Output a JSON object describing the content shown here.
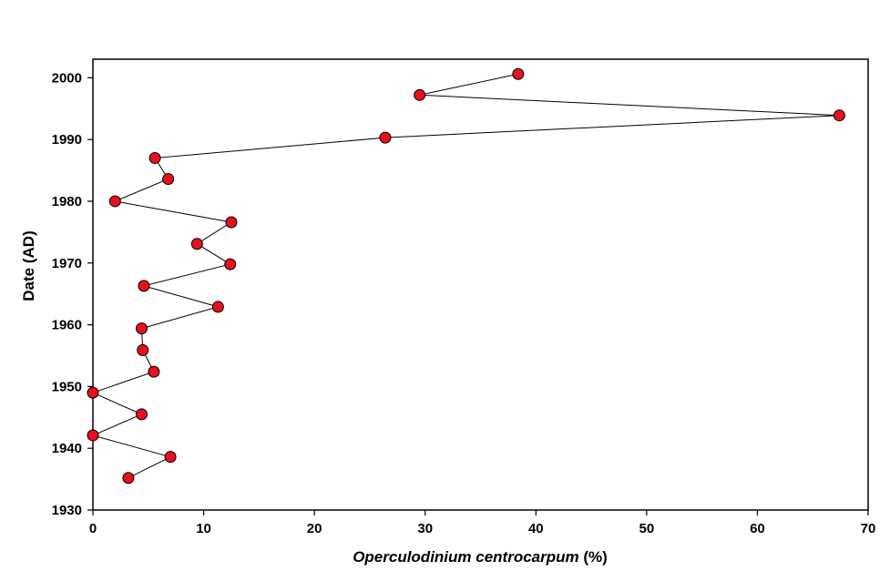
{
  "chart_data": {
    "type": "scatter",
    "title": "",
    "xlabel_italic": "Operculodinium centrocarpum",
    "xlabel_suffix": " (%)",
    "ylabel": "Date (AD)",
    "xlim": [
      0,
      70
    ],
    "ylim": [
      1930,
      2003
    ],
    "xticks": [
      0,
      10,
      20,
      30,
      40,
      50,
      60,
      70
    ],
    "yticks": [
      1930,
      1940,
      1950,
      1960,
      1970,
      1980,
      1990,
      2000
    ],
    "grid": false,
    "legend": "none",
    "marker_color": "#e8101c",
    "marker_edge_color": "#000000",
    "line_color": "#000000",
    "series": [
      {
        "points": [
          {
            "x": 38.4,
            "y": 2000.6
          },
          {
            "x": 29.5,
            "y": 1997.2
          },
          {
            "x": 67.4,
            "y": 1993.9
          },
          {
            "x": 26.4,
            "y": 1990.3
          },
          {
            "x": 5.6,
            "y": 1987.0
          },
          {
            "x": 6.8,
            "y": 1983.6
          },
          {
            "x": 2.0,
            "y": 1980.0
          },
          {
            "x": 12.5,
            "y": 1976.6
          },
          {
            "x": 9.4,
            "y": 1973.1
          },
          {
            "x": 12.4,
            "y": 1969.8
          },
          {
            "x": 4.6,
            "y": 1966.3
          },
          {
            "x": 11.3,
            "y": 1962.9
          },
          {
            "x": 4.4,
            "y": 1959.4
          },
          {
            "x": 4.5,
            "y": 1955.9
          },
          {
            "x": 5.5,
            "y": 1952.4
          },
          {
            "x": 0.0,
            "y": 1949.0
          },
          {
            "x": 4.4,
            "y": 1945.5
          },
          {
            "x": 0.0,
            "y": 1942.1
          },
          {
            "x": 7.0,
            "y": 1938.6
          },
          {
            "x": 3.2,
            "y": 1935.2
          }
        ]
      }
    ]
  }
}
